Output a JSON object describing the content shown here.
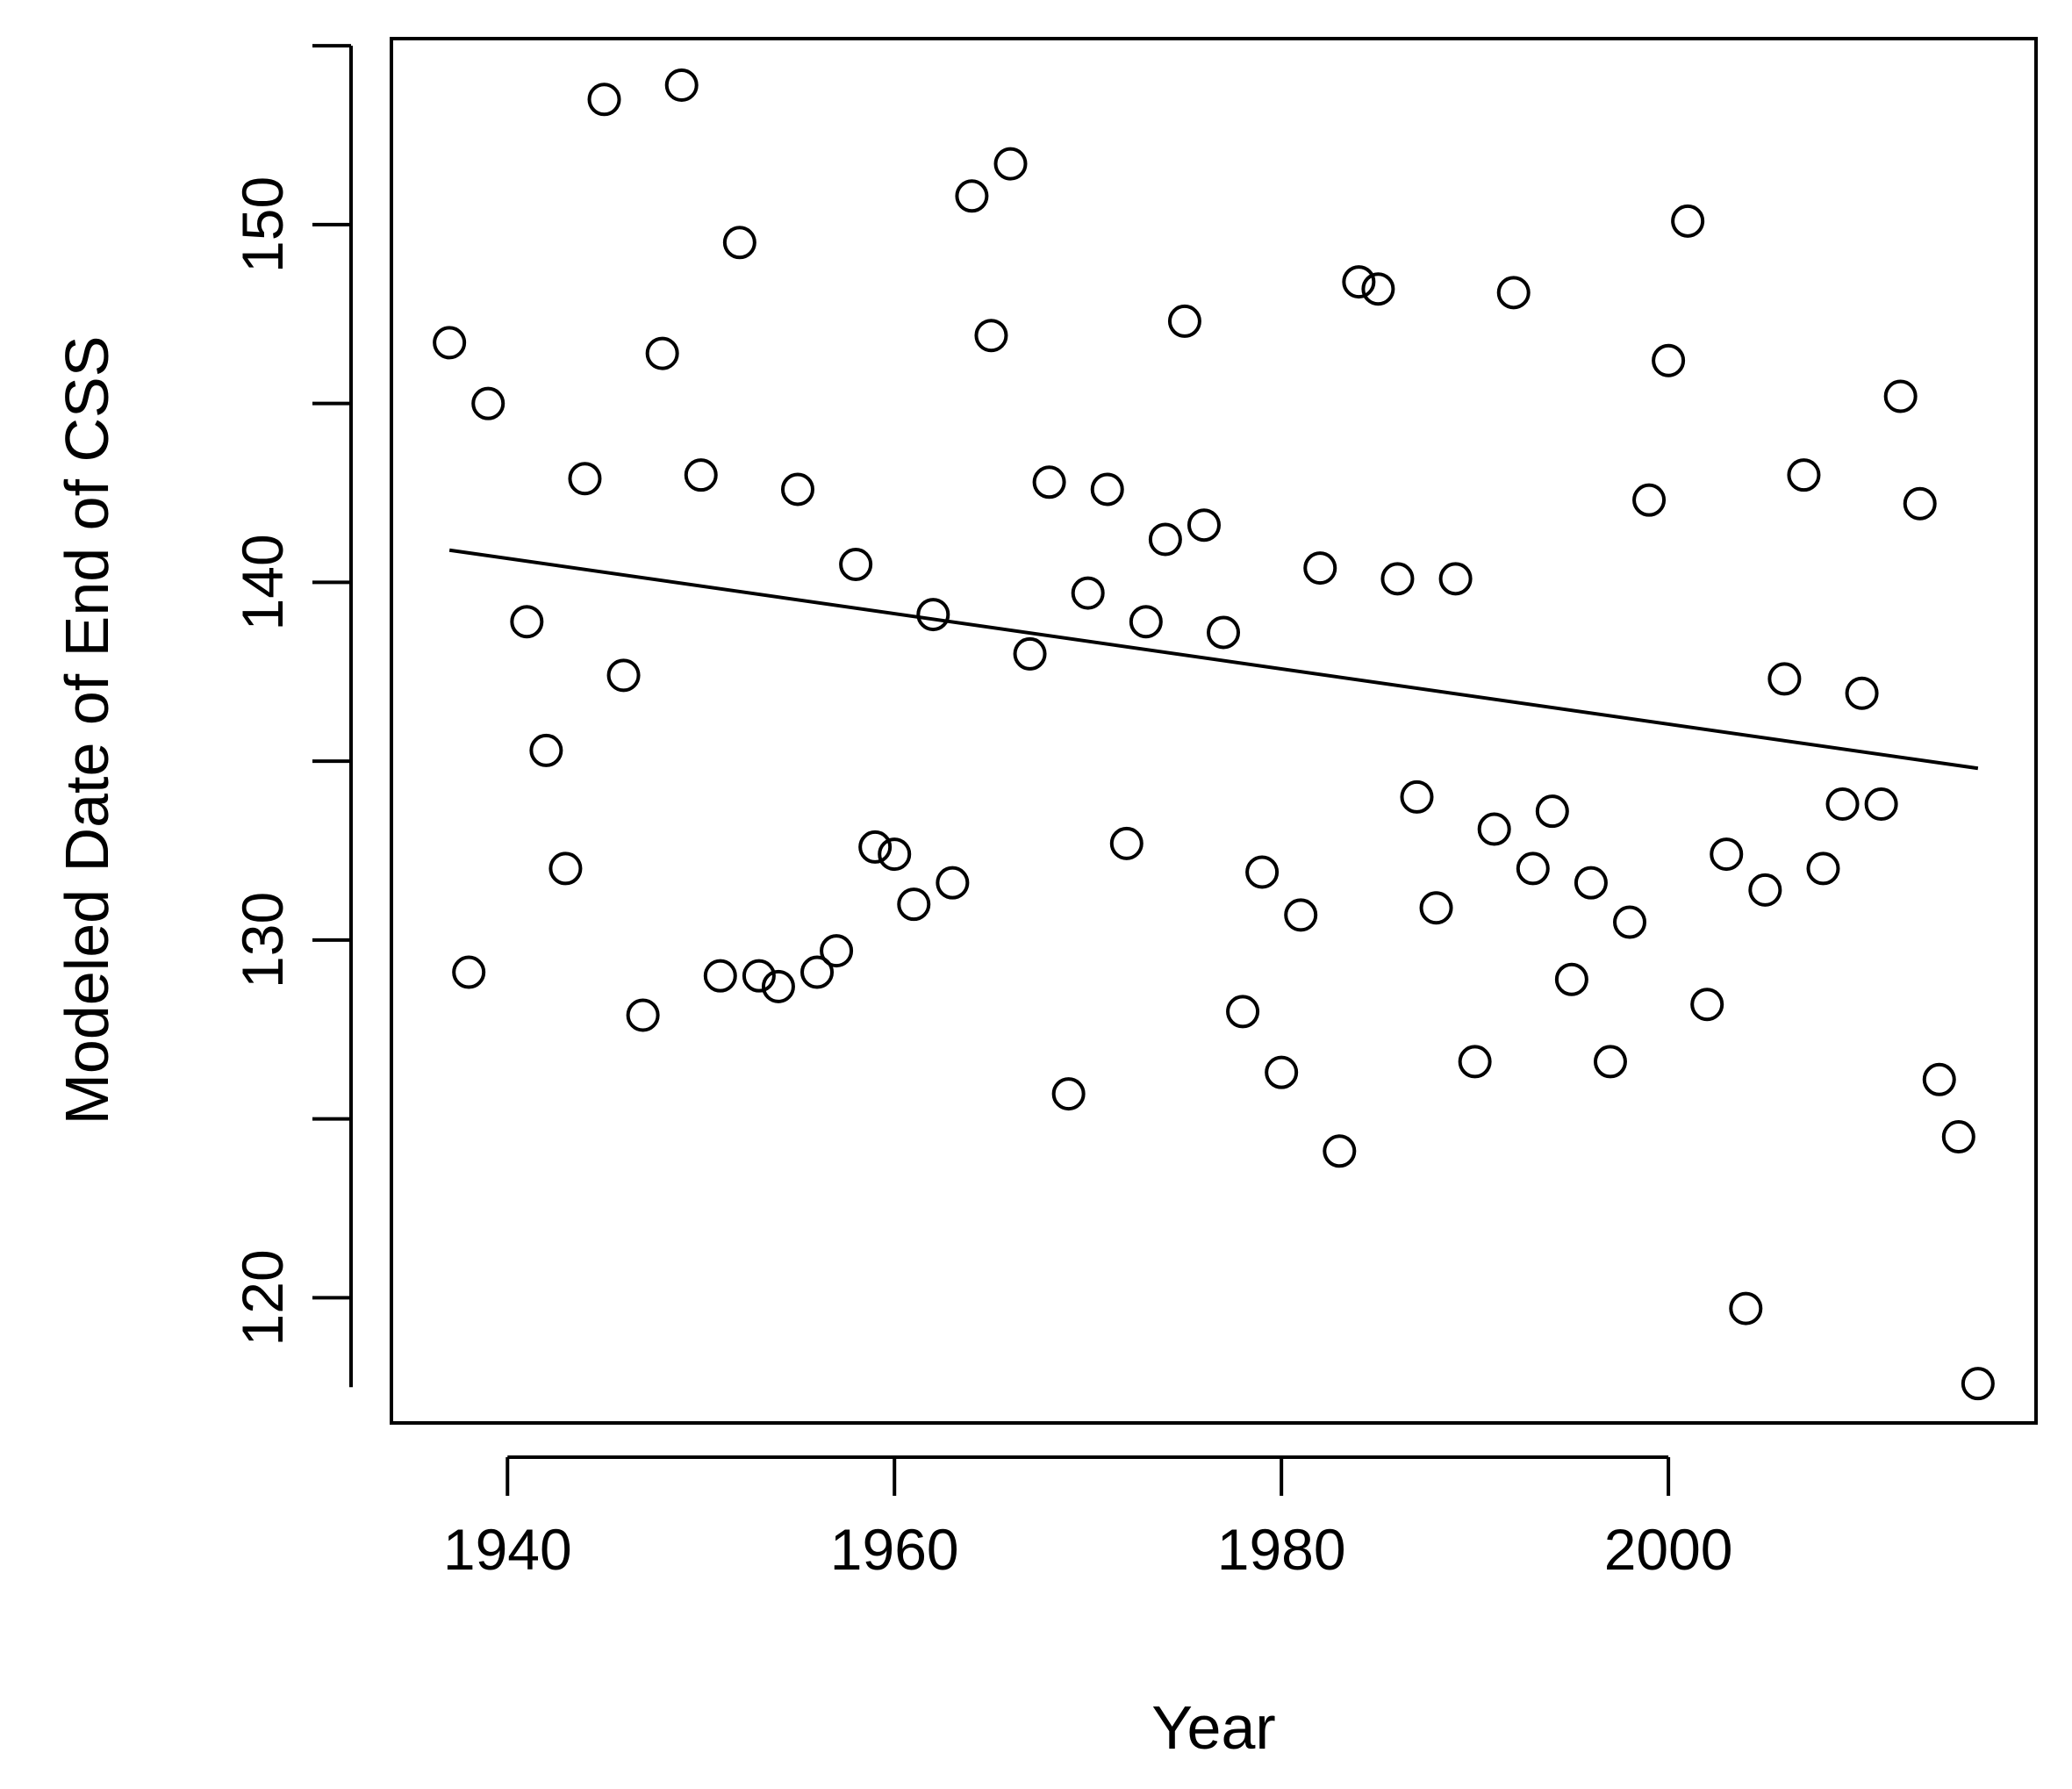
{
  "chart_data": {
    "type": "scatter",
    "xlabel": "Year",
    "ylabel": "Modeled Date of End of CSS",
    "xlim": [
      1934,
      2019
    ],
    "ylim": [
      116.5,
      155.2
    ],
    "x_ticks": [
      1940,
      1960,
      1980,
      2000
    ],
    "y_ticks": [
      120,
      130,
      140,
      150
    ],
    "grid": false,
    "legend": "none",
    "series": [
      {
        "points": [
          [
            1937,
            146.7
          ],
          [
            1938,
            129.1
          ],
          [
            1939,
            145.0
          ],
          [
            1941,
            138.9
          ],
          [
            1942,
            135.3
          ],
          [
            1943,
            132.0
          ],
          [
            1944,
            142.9
          ],
          [
            1945,
            153.5
          ],
          [
            1946,
            137.4
          ],
          [
            1947,
            127.9
          ],
          [
            1948,
            146.4
          ],
          [
            1949,
            153.9
          ],
          [
            1950,
            143.0
          ],
          [
            1951,
            129.0
          ],
          [
            1952,
            149.5
          ],
          [
            1953,
            129.0
          ],
          [
            1954,
            128.7
          ],
          [
            1955,
            142.6
          ],
          [
            1956,
            129.1
          ],
          [
            1957,
            129.7
          ],
          [
            1958,
            140.5
          ],
          [
            1959,
            132.6
          ],
          [
            1960,
            132.4
          ],
          [
            1961,
            131.0
          ],
          [
            1962,
            139.1
          ],
          [
            1963,
            131.6
          ],
          [
            1964,
            150.8
          ],
          [
            1965,
            146.9
          ],
          [
            1966,
            151.7
          ],
          [
            1967,
            138.0
          ],
          [
            1968,
            142.8
          ],
          [
            1969,
            125.7
          ],
          [
            1970,
            139.7
          ],
          [
            1971,
            142.6
          ],
          [
            1972,
            132.7
          ],
          [
            1973,
            138.9
          ],
          [
            1974,
            141.2
          ],
          [
            1975,
            147.3
          ],
          [
            1976,
            141.6
          ],
          [
            1977,
            138.6
          ],
          [
            1978,
            128.0
          ],
          [
            1979,
            131.9
          ],
          [
            1980,
            126.3
          ],
          [
            1981,
            130.7
          ],
          [
            1982,
            140.4
          ],
          [
            1983,
            124.1
          ],
          [
            1984,
            148.4
          ],
          [
            1985,
            148.2
          ],
          [
            1986,
            140.1
          ],
          [
            1987,
            134.0
          ],
          [
            1988,
            130.9
          ],
          [
            1989,
            140.1
          ],
          [
            1990,
            126.6
          ],
          [
            1991,
            133.1
          ],
          [
            1992,
            148.1
          ],
          [
            1993,
            132.0
          ],
          [
            1994,
            133.6
          ],
          [
            1995,
            128.9
          ],
          [
            1996,
            131.6
          ],
          [
            1997,
            126.6
          ],
          [
            1998,
            130.5
          ],
          [
            1999,
            142.3
          ],
          [
            2000,
            146.2
          ],
          [
            2001,
            150.1
          ],
          [
            2002,
            128.2
          ],
          [
            2003,
            132.4
          ],
          [
            2004,
            119.7
          ],
          [
            2005,
            131.4
          ],
          [
            2006,
            137.3
          ],
          [
            2007,
            143.0
          ],
          [
            2008,
            132.0
          ],
          [
            2009,
            133.8
          ],
          [
            2010,
            136.9
          ],
          [
            2011,
            133.8
          ],
          [
            2012,
            145.2
          ],
          [
            2013,
            142.2
          ],
          [
            2014,
            126.1
          ],
          [
            2015,
            124.5
          ],
          [
            2016,
            117.6
          ]
        ]
      }
    ],
    "trend_line": {
      "x": [
        1937,
        2016
      ],
      "y": [
        140.9,
        134.8
      ]
    }
  }
}
